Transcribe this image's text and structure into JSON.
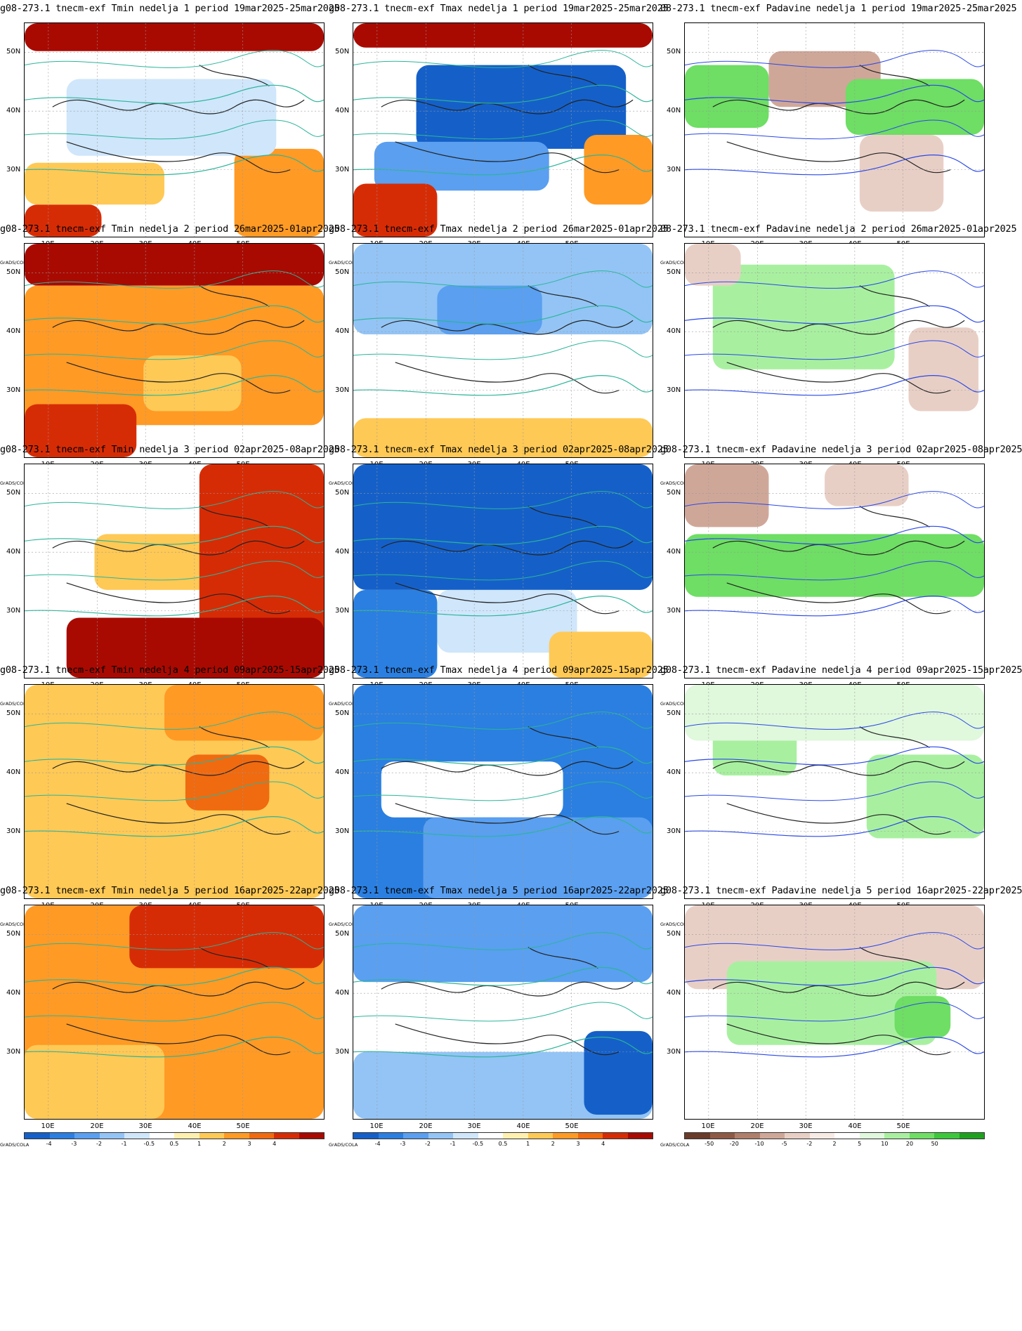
{
  "grads_label": "GrADS/COLA",
  "lat_labels": [
    "50N",
    "40N",
    "30N"
  ],
  "lon_labels": [
    "10E",
    "20E",
    "30E",
    "40E",
    "50E"
  ],
  "colorbars": {
    "temp": {
      "ticks": [
        "-4",
        "-3",
        "-2",
        "-1",
        "-0.5",
        "0.5",
        "1",
        "2",
        "3",
        "4"
      ],
      "colors": [
        "#1560c8",
        "#2b7fe0",
        "#5a9ff0",
        "#93c4f5",
        "#cfe6fb",
        "#ffffff",
        "#fff0b0",
        "#ffc955",
        "#ff9a25",
        "#f06a10",
        "#d62c06",
        "#a80a02"
      ]
    },
    "precip": {
      "ticks": [
        "-50",
        "-20",
        "-10",
        "-5",
        "-2",
        "2",
        "5",
        "10",
        "20",
        "50"
      ],
      "colors": [
        "#6b3b2a",
        "#8f5a45",
        "#b07f6c",
        "#cfa799",
        "#e8cfc6",
        "#f7ebe5",
        "#ffffff",
        "#e0f8dc",
        "#a8f0a0",
        "#6ede64",
        "#3cc83a",
        "#1ea21e"
      ]
    }
  },
  "panels": [
    {
      "title": "g08-273.1 tnecm-exf Tmin nedelja 1 period 19mar2025-25mar2025",
      "type": "temp",
      "variant": "tmin1"
    },
    {
      "title": "g08-273.1 tnecm-exf Tmax nedelja 1 period 19mar2025-25mar2025",
      "type": "temp",
      "variant": "tmax1"
    },
    {
      "title": "08-273.1 tnecm-exf Padavine nedelja 1 period 19mar2025-25mar2025",
      "type": "precip",
      "variant": "p1"
    },
    {
      "title": "g08-273.1 tnecm-exf Tmin nedelja 2 period 26mar2025-01apr2025",
      "type": "temp",
      "variant": "tmin2"
    },
    {
      "title": "g08-273.1 tnecm-exf Tmax nedelja 2 period 26mar2025-01apr2025",
      "type": "temp",
      "variant": "tmax2"
    },
    {
      "title": "08-273.1 tnecm-exf Padavine nedelja 2 period 26mar2025-01apr2025",
      "type": "precip",
      "variant": "p2"
    },
    {
      "title": "g08-273.1 tnecm-exf Tmin nedelja 3 period 02apr2025-08apr2025",
      "type": "temp",
      "variant": "tmin3"
    },
    {
      "title": "g08-273.1 tnecm-exf Tmax nedelja 3 period 02apr2025-08apr2025",
      "type": "temp",
      "variant": "tmax3"
    },
    {
      "title": "g08-273.1 tnecm-exf Padavine nedelja 3 period 02apr2025-08apr2025",
      "type": "precip",
      "variant": "p3"
    },
    {
      "title": "g08-273.1 tnecm-exf Tmin nedelja 4 period 09apr2025-15apr2025",
      "type": "temp",
      "variant": "tmin4"
    },
    {
      "title": "g08-273.1 tnecm-exf Tmax nedelja 4 period 09apr2025-15apr2025",
      "type": "temp",
      "variant": "tmax4"
    },
    {
      "title": "g08-273.1 tnecm-exf Padavine nedelja 4 period 09apr2025-15apr2025",
      "type": "precip",
      "variant": "p4"
    },
    {
      "title": "g08-273.1 tnecm-exf Tmin nedelja 5 period 16apr2025-22apr2025",
      "type": "temp",
      "variant": "tmin5"
    },
    {
      "title": "g08-273.1 tnecm-exf Tmax nedelja 5 period 16apr2025-22apr2025",
      "type": "temp",
      "variant": "tmax5"
    },
    {
      "title": "g08-273.1 tnecm-exf Padavine nedelja 5 period 16apr2025-22apr2025",
      "type": "precip",
      "variant": "p5"
    }
  ]
}
